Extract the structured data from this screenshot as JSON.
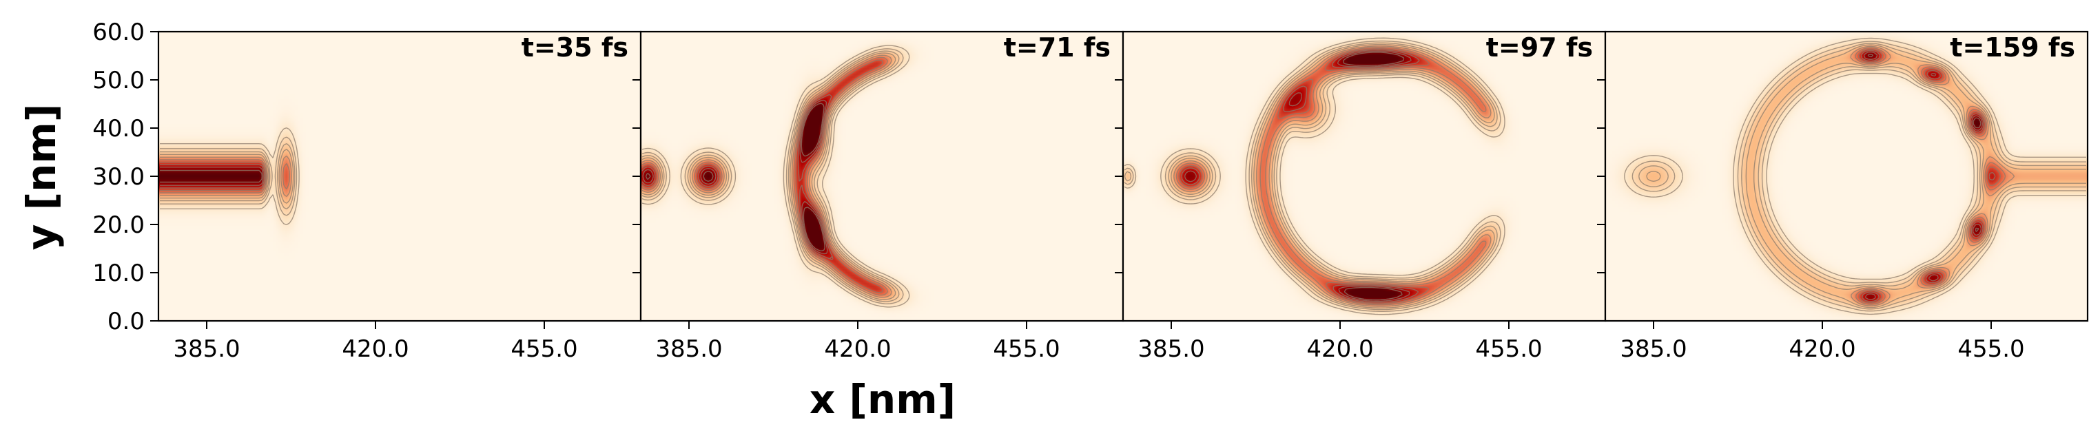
{
  "chart_data": {
    "type": "heatmap",
    "xlabel": "x [nm]",
    "ylabel": "y [nm]",
    "xlim": [
      375,
      475
    ],
    "ylim": [
      0,
      60
    ],
    "x_ticks": [
      "385.0",
      "420.0",
      "455.0"
    ],
    "y_ticks": [
      "0.0",
      "10.0",
      "20.0",
      "30.0",
      "40.0",
      "50.0",
      "60.0"
    ],
    "colormap": "OrRd",
    "colors": {
      "background": "#fff5e6",
      "low": "#fde3c0",
      "mid": "#e35b3c",
      "high": "#5a0005",
      "contour": "#8c7b6b"
    },
    "panels": [
      {
        "time_label": "t=35 fs",
        "features": [
          {
            "kind": "beam",
            "x0": 375,
            "x1": 396,
            "y": 30,
            "half_width": 3,
            "intensity": 1.0
          },
          {
            "kind": "blob",
            "x": 401.5,
            "y": 30,
            "sx": 1.3,
            "sy": 5.0,
            "intensity": 0.6
          }
        ]
      },
      {
        "time_label": "t=71 fs",
        "features": [
          {
            "kind": "blob",
            "x": 376.5,
            "y": 30,
            "sx": 2.0,
            "sy": 2.6,
            "intensity": 0.95
          },
          {
            "kind": "blob",
            "x": 389.0,
            "y": 30,
            "sx": 2.5,
            "sy": 2.6,
            "intensity": 1.0
          },
          {
            "kind": "arc",
            "cx": 433,
            "cy": 30,
            "r": 25,
            "width": 1.6,
            "a0": 112,
            "a1": 248,
            "intensity": 0.7
          },
          {
            "kind": "blob",
            "x": 411,
            "y": 39,
            "sx": 1.8,
            "sy": 4.5,
            "intensity": 0.9
          },
          {
            "kind": "blob",
            "x": 411,
            "y": 19,
            "sx": 1.8,
            "sy": 4.0,
            "intensity": 0.75
          }
        ]
      },
      {
        "time_label": "t=97 fs",
        "features": [
          {
            "kind": "blob",
            "x": 376.0,
            "y": 30,
            "sx": 1.0,
            "sy": 1.5,
            "intensity": 0.3
          },
          {
            "kind": "blob",
            "x": 389.0,
            "y": 30,
            "sx": 2.8,
            "sy": 2.6,
            "intensity": 0.9
          },
          {
            "kind": "arc",
            "cx": 429,
            "cy": 30,
            "r": 25,
            "width": 1.8,
            "a0": 35,
            "a1": 325,
            "intensity": 0.55
          },
          {
            "kind": "blob",
            "x": 427,
            "y": 54,
            "sx": 5.5,
            "sy": 1.6,
            "intensity": 0.75
          },
          {
            "kind": "blob",
            "x": 413,
            "y": 44,
            "sx": 3.0,
            "sy": 3.0,
            "intensity": 0.6
          },
          {
            "kind": "blob",
            "x": 427,
            "y": 6,
            "sx": 5.5,
            "sy": 1.6,
            "intensity": 0.7
          }
        ]
      },
      {
        "time_label": "t=159 fs",
        "features": [
          {
            "kind": "blob",
            "x": 385.0,
            "y": 30,
            "sx": 3.5,
            "sy": 2.5,
            "intensity": 0.35
          },
          {
            "kind": "arc",
            "cx": 430,
            "cy": 30,
            "r": 25,
            "width": 2.0,
            "a0": 0,
            "a1": 360,
            "intensity": 0.35
          },
          {
            "kind": "beam",
            "x0": 455,
            "x1": 475,
            "y": 30,
            "half_width": 2.2,
            "intensity": 0.4
          },
          {
            "kind": "blob",
            "x": 430,
            "y": 55,
            "sx": 2.0,
            "sy": 1.3,
            "intensity": 0.6
          },
          {
            "kind": "blob",
            "x": 443,
            "y": 51,
            "sx": 2.0,
            "sy": 1.3,
            "intensity": 0.5
          },
          {
            "kind": "blob",
            "x": 452,
            "y": 41,
            "sx": 1.4,
            "sy": 1.8,
            "intensity": 0.7
          },
          {
            "kind": "blob",
            "x": 452,
            "y": 19,
            "sx": 1.4,
            "sy": 1.8,
            "intensity": 0.6
          },
          {
            "kind": "blob",
            "x": 443,
            "y": 9,
            "sx": 2.0,
            "sy": 1.3,
            "intensity": 0.55
          },
          {
            "kind": "blob",
            "x": 430,
            "y": 5,
            "sx": 2.0,
            "sy": 1.3,
            "intensity": 0.55
          }
        ]
      }
    ]
  }
}
